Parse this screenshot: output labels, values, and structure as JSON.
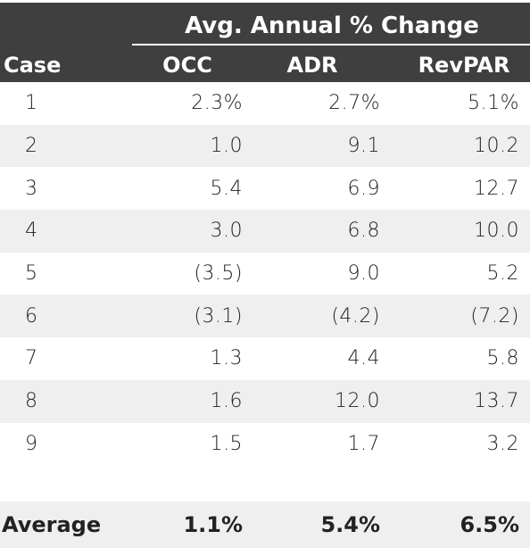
{
  "table": {
    "group_header": "Avg. Annual % Change",
    "columns": [
      "Case",
      "OCC",
      "ADR",
      "RevPAR"
    ],
    "rows": [
      {
        "case": "1",
        "occ": "2.3%",
        "adr": "2.7%",
        "revpar": "5.1%"
      },
      {
        "case": "2",
        "occ": "1.0",
        "adr": "9.1",
        "revpar": "10.2"
      },
      {
        "case": "3",
        "occ": "5.4",
        "adr": "6.9",
        "revpar": "12.7"
      },
      {
        "case": "4",
        "occ": "3.0",
        "adr": "6.8",
        "revpar": "10.0"
      },
      {
        "case": "5",
        "occ": "(3.5)",
        "adr": "9.0",
        "revpar": "5.2"
      },
      {
        "case": "6",
        "occ": "(3.1)",
        "adr": "(4.2)",
        "revpar": "(7.2)"
      },
      {
        "case": "7",
        "occ": "1.3",
        "adr": "4.4",
        "revpar": "5.8"
      },
      {
        "case": "8",
        "occ": "1.6",
        "adr": "12.0",
        "revpar": "13.7"
      },
      {
        "case": "9",
        "occ": "1.5",
        "adr": "1.7",
        "revpar": "3.2"
      }
    ],
    "average": {
      "label": "Average",
      "occ": "1.1%",
      "adr": "5.4%",
      "revpar": "6.5%"
    }
  },
  "colors": {
    "header_bg": "#3f3f3f",
    "header_text": "#ffffff",
    "stripe": "#efefef"
  }
}
